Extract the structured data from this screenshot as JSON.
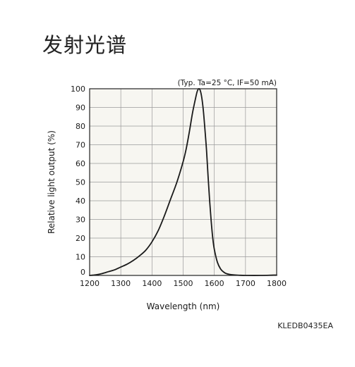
{
  "page": {
    "title": "发射光谱",
    "doc_code": "KLEDB0435EA"
  },
  "chart_data": {
    "type": "line",
    "title": "",
    "condition_note": "(Typ. Ta=25 °C, IF=50 mA)",
    "xlabel": "Wavelength (nm)",
    "ylabel": "Relative light output (%)",
    "xlim": [
      1200,
      1800
    ],
    "ylim": [
      0,
      100
    ],
    "xticks": [
      1200,
      1300,
      1400,
      1500,
      1600,
      1700,
      1800
    ],
    "yticks": [
      0,
      10,
      20,
      30,
      40,
      50,
      60,
      70,
      80,
      90,
      100
    ],
    "grid": true,
    "line_color": "#1a1a1a",
    "background_color": "#f7f6f1",
    "grid_color": "#9a9a9a",
    "series": [
      {
        "x": [
          1200,
          1220,
          1240,
          1260,
          1280,
          1300,
          1320,
          1340,
          1360,
          1380,
          1400,
          1420,
          1440,
          1460,
          1480,
          1500,
          1510,
          1520,
          1530,
          1540,
          1545,
          1550,
          1555,
          1560,
          1565,
          1570,
          1575,
          1580,
          1585,
          1590,
          1595,
          1600,
          1610,
          1620,
          1630,
          1640,
          1660,
          1680,
          1700,
          1750,
          1800
        ],
        "y": [
          0,
          0.3,
          1,
          2,
          3,
          4.5,
          6,
          8,
          10.5,
          13.5,
          18,
          24,
          32,
          41,
          50,
          61,
          68,
          77,
          87,
          95,
          98.5,
          100,
          99,
          95,
          88,
          78,
          67,
          53,
          40,
          29,
          20,
          14,
          7,
          3.5,
          1.8,
          0.9,
          0.3,
          0.1,
          0,
          0,
          0.2
        ]
      }
    ]
  }
}
